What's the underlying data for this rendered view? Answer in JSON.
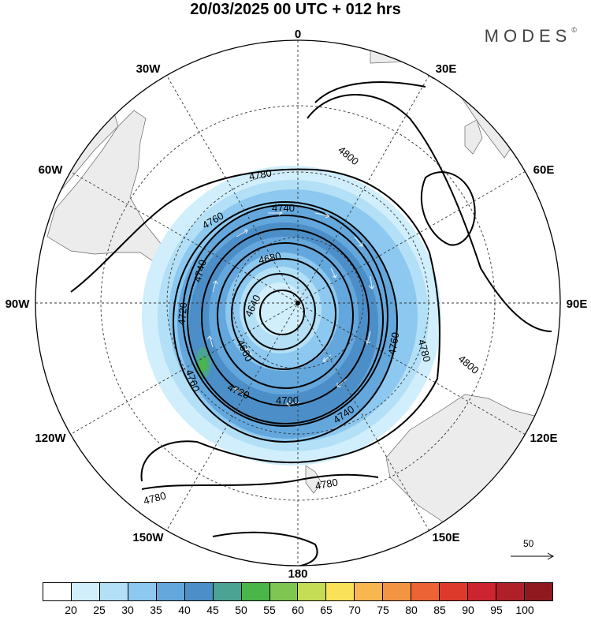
{
  "title": "20/03/2025  00 UTC  + 012 hrs",
  "brand": "MODES",
  "brand_mark": "©",
  "longitude_labels": {
    "top": "0",
    "bottom": "180",
    "left": "90W",
    "right": "90E",
    "n30w": "30W",
    "n30e": "30E",
    "n60w": "60W",
    "n60e": "60E",
    "s120w": "120W",
    "s120e": "120E",
    "s150w": "150W",
    "s150e": "150E"
  },
  "contour_labels": [
    "4780",
    "4760",
    "4740",
    "4680",
    "4640",
    "4720",
    "4660",
    "4800",
    "4760",
    "4780",
    "4800",
    "4740",
    "4700",
    "4720",
    "4760",
    "4740",
    "4780",
    "4780"
  ],
  "reference_vector": "50",
  "colorbar": {
    "colors": [
      "#ffffff",
      "#d0eefb",
      "#b3e0f6",
      "#8cc8ef",
      "#63a7dd",
      "#4c8fc8",
      "#4aa393",
      "#4ab549",
      "#7ec552",
      "#c4dd55",
      "#f9e25a",
      "#f7b64f",
      "#f39443",
      "#ec6435",
      "#de3a2c",
      "#cc2430",
      "#b0202a",
      "#8e1a20"
    ],
    "ticks": [
      "20",
      "25",
      "30",
      "35",
      "40",
      "45",
      "50",
      "55",
      "60",
      "65",
      "70",
      "75",
      "80",
      "85",
      "90",
      "95",
      "100"
    ]
  },
  "colors": {
    "continent": "#ececec",
    "coast": "#666666",
    "grid": "#333333",
    "contour": "#000000",
    "wind_vector": "#ffffff"
  }
}
